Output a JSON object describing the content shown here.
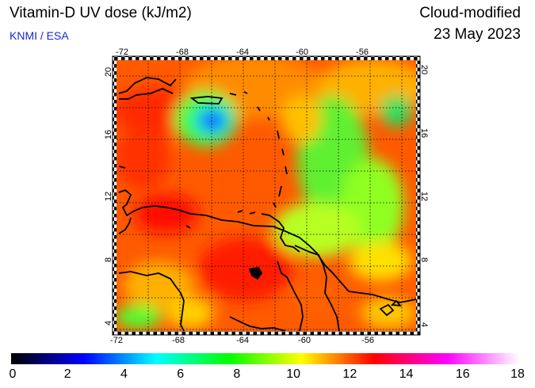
{
  "header": {
    "title": "Vitamin-D UV dose (kJ/m2)",
    "source": "KNMI / ESA",
    "product": "Cloud-modified",
    "date": "23 May 2023"
  },
  "map": {
    "region": "Caribbean Sea",
    "lon_range": [
      -72,
      -53
    ],
    "lat_range": [
      3.5,
      20.5
    ],
    "lon_ticks": [
      "-72",
      "-68",
      "-64",
      "-60",
      "-56"
    ],
    "lat_ticks": [
      "20",
      "16",
      "12",
      "8",
      "4"
    ],
    "grid": "dotted 2-degree graticule"
  },
  "colorbar": {
    "min": 0,
    "max": 18,
    "labels": [
      "0",
      "2",
      "4",
      "6",
      "8",
      "10",
      "12",
      "14",
      "16",
      "18"
    ],
    "colors": [
      "#000000",
      "#0000ff",
      "#00ffff",
      "#00ff00",
      "#ffff00",
      "#ff0000",
      "#ff00ff",
      "#ffffff"
    ]
  }
}
